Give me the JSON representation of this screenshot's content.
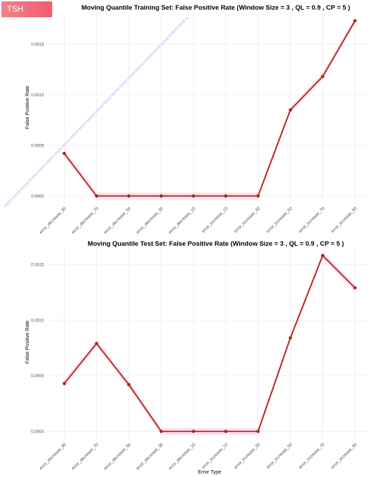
{
  "badge": {
    "label": "TSH"
  },
  "chart_data": [
    {
      "type": "line",
      "title": "Moving Quantile Training Set: False Positive Rate (Window Size = 3 , QL = 0.9 , CP = 5 )",
      "xlabel": "",
      "ylabel": "False Positive Rate",
      "categories": [
        "error_decrease_90",
        "error_decrease_70",
        "error_decrease_50",
        "error_decrease_30",
        "error_decrease_10",
        "error_increase_10",
        "error_increase_30",
        "error_increase_50",
        "error_increase_70",
        "error_increase_90"
      ],
      "values": [
        0.00042,
        0.0,
        0.0,
        0.0,
        0.0,
        0.0,
        0.0,
        0.00085,
        0.00118,
        0.00173
      ],
      "yticks": [
        0.0,
        0.0005,
        0.001,
        0.0015
      ],
      "ytick_labels": [
        "0.0000",
        "0.0005",
        "0.0010",
        "0.0015"
      ],
      "ylim": [
        -7e-05,
        0.00182
      ],
      "color": "#b0281a",
      "band_color": "#f6cbe1",
      "grid": true,
      "legend": "none"
    },
    {
      "type": "line",
      "title": "Moving Quantile Test Set: False Positive Rate (Window Size = 3 , QL = 0.9 , CP = 5 )",
      "xlabel": "Error Type",
      "ylabel": "False Positive Rate",
      "categories": [
        "error_decrease_90",
        "error_decrease_70",
        "error_decrease_50",
        "error_decrease_30",
        "error_decrease_10",
        "error_increase_10",
        "error_increase_30",
        "error_increase_50",
        "error_increase_70",
        "error_increase_90"
      ],
      "values": [
        0.00043,
        0.00079,
        0.00042,
        0.0,
        0.0,
        0.0,
        0.0,
        0.00084,
        0.00158,
        0.00129
      ],
      "yticks": [
        0.0,
        0.0005,
        0.001,
        0.0015
      ],
      "ytick_labels": [
        "0.0000",
        "0.0005",
        "0.0010",
        "0.0015"
      ],
      "ylim": [
        -7e-05,
        0.00165
      ],
      "color": "#b0281a",
      "band_color": "#f6cbe1",
      "grid": true,
      "legend": "none"
    }
  ]
}
